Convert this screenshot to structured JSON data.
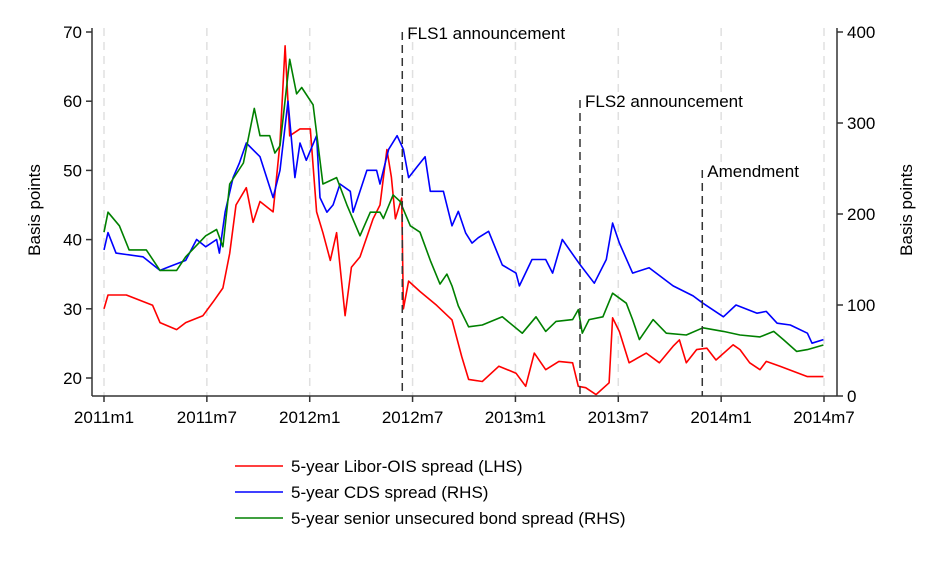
{
  "chart_data": {
    "type": "line",
    "title": "",
    "xlabel": "",
    "ylabel_left": "Basis points",
    "ylabel_right": "Basis points",
    "x_ticks": [
      "2011m1",
      "2011m7",
      "2012m1",
      "2012m7",
      "2013m1",
      "2013m7",
      "2014m1",
      "2014m7"
    ],
    "ylim_left": [
      17.5,
      70
    ],
    "yticks_left": [
      20,
      30,
      40,
      50,
      60,
      70
    ],
    "ylim_right": [
      0,
      400
    ],
    "yticks_right": [
      0,
      100,
      200,
      300,
      400
    ],
    "grid": "vertical dashed at x ticks",
    "legend_position": "bottom",
    "events": [
      {
        "label": "FLS1 announcement",
        "date": "2012-06-13"
      },
      {
        "label": "FLS2 announcement",
        "date": "2013-04-24"
      },
      {
        "label": "Amendment",
        "date": "2013-11-28"
      }
    ],
    "series": [
      {
        "name": "5-year Libor-OIS spread (LHS)",
        "axis": "left",
        "color": "#ff0000",
        "points": [
          [
            "2011-01-01",
            30
          ],
          [
            "2011-01-08",
            32
          ],
          [
            "2011-02-10",
            32
          ],
          [
            "2011-03-26",
            30.5
          ],
          [
            "2011-04-09",
            28
          ],
          [
            "2011-05-08",
            27
          ],
          [
            "2011-05-24",
            28
          ],
          [
            "2011-06-24",
            29
          ],
          [
            "2011-07-12",
            31
          ],
          [
            "2011-07-29",
            33
          ],
          [
            "2011-08-11",
            38
          ],
          [
            "2011-08-22",
            45
          ],
          [
            "2011-09-10",
            47.5
          ],
          [
            "2011-09-22",
            42.5
          ],
          [
            "2011-10-04",
            45.5
          ],
          [
            "2011-10-27",
            44
          ],
          [
            "2011-11-09",
            54
          ],
          [
            "2011-11-18",
            68
          ],
          [
            "2011-11-26",
            55
          ],
          [
            "2011-12-14",
            56
          ],
          [
            "2012-01-02",
            56
          ],
          [
            "2012-01-13",
            44
          ],
          [
            "2012-01-24",
            41
          ],
          [
            "2012-02-07",
            37
          ],
          [
            "2012-02-18",
            41
          ],
          [
            "2012-03-03",
            29
          ],
          [
            "2012-03-14",
            36
          ],
          [
            "2012-03-29",
            37.5
          ],
          [
            "2012-04-22",
            43
          ],
          [
            "2012-05-04",
            45
          ],
          [
            "2012-05-16",
            53
          ],
          [
            "2012-05-24",
            49
          ],
          [
            "2012-06-01",
            43
          ],
          [
            "2012-06-12",
            46
          ],
          [
            "2012-06-15",
            30
          ],
          [
            "2012-06-24",
            34
          ],
          [
            "2012-07-14",
            32.5
          ],
          [
            "2012-08-13",
            30.5
          ],
          [
            "2012-09-10",
            28.4
          ],
          [
            "2012-09-27",
            23.1
          ],
          [
            "2012-10-09",
            19.8
          ],
          [
            "2012-11-03",
            19.5
          ],
          [
            "2012-12-02",
            21.7
          ],
          [
            "2013-01-02",
            20.7
          ],
          [
            "2013-01-19",
            18.8
          ],
          [
            "2013-02-04",
            23.6
          ],
          [
            "2013-02-24",
            21.2
          ],
          [
            "2013-03-17",
            22.4
          ],
          [
            "2013-04-11",
            22.2
          ],
          [
            "2013-04-21",
            18.8
          ],
          [
            "2013-05-04",
            18.6
          ],
          [
            "2013-05-22",
            17.6
          ],
          [
            "2013-06-15",
            19.3
          ],
          [
            "2013-06-21",
            28.7
          ],
          [
            "2013-07-03",
            26.7
          ],
          [
            "2013-07-20",
            22.2
          ],
          [
            "2013-08-20",
            23.6
          ],
          [
            "2013-09-13",
            22.2
          ],
          [
            "2013-10-07",
            24.6
          ],
          [
            "2013-10-18",
            25.5
          ],
          [
            "2013-10-30",
            22.2
          ],
          [
            "2013-11-18",
            24.1
          ],
          [
            "2013-12-06",
            24.3
          ],
          [
            "2013-12-22",
            22.6
          ],
          [
            "2014-01-22",
            24.8
          ],
          [
            "2014-02-04",
            24.1
          ],
          [
            "2014-02-21",
            22.2
          ],
          [
            "2014-03-09",
            21.2
          ],
          [
            "2014-03-20",
            22.4
          ],
          [
            "2014-04-14",
            21.7
          ],
          [
            "2014-06-02",
            20.2
          ],
          [
            "2014-06-30",
            20.2
          ]
        ]
      },
      {
        "name": "5-year CDS spread (RHS)",
        "axis": "right",
        "color": "#0000ff",
        "points": [
          [
            "2011-01-01",
            160.6
          ],
          [
            "2011-01-08",
            179.6
          ],
          [
            "2011-01-22",
            157
          ],
          [
            "2011-03-09",
            153
          ],
          [
            "2011-04-09",
            138
          ],
          [
            "2011-04-25",
            142
          ],
          [
            "2011-05-24",
            149
          ],
          [
            "2011-06-13",
            172
          ],
          [
            "2011-06-29",
            164
          ],
          [
            "2011-07-18",
            172
          ],
          [
            "2011-07-23",
            157
          ],
          [
            "2011-08-03",
            202
          ],
          [
            "2011-08-17",
            240
          ],
          [
            "2011-08-28",
            256
          ],
          [
            "2011-09-10",
            278
          ],
          [
            "2011-10-04",
            263
          ],
          [
            "2011-10-27",
            218
          ],
          [
            "2011-11-09",
            248
          ],
          [
            "2011-11-23",
            324
          ],
          [
            "2011-12-05",
            240
          ],
          [
            "2011-12-14",
            278
          ],
          [
            "2011-12-25",
            259
          ],
          [
            "2012-01-13",
            286
          ],
          [
            "2012-01-19",
            218
          ],
          [
            "2012-02-01",
            202
          ],
          [
            "2012-02-12",
            210
          ],
          [
            "2012-02-24",
            233
          ],
          [
            "2012-03-12",
            225
          ],
          [
            "2012-03-17",
            202
          ],
          [
            "2012-04-11",
            248
          ],
          [
            "2012-04-28",
            248
          ],
          [
            "2012-05-04",
            233
          ],
          [
            "2012-05-19",
            271
          ],
          [
            "2012-06-04",
            286
          ],
          [
            "2012-06-15",
            271
          ],
          [
            "2012-06-24",
            240
          ],
          [
            "2012-07-09",
            252
          ],
          [
            "2012-07-23",
            263
          ],
          [
            "2012-08-02",
            225
          ],
          [
            "2012-08-25",
            225
          ],
          [
            "2012-09-10",
            187
          ],
          [
            "2012-09-21",
            203
          ],
          [
            "2012-10-04",
            179
          ],
          [
            "2012-10-15",
            168
          ],
          [
            "2012-10-26",
            174
          ],
          [
            "2012-11-14",
            181
          ],
          [
            "2012-12-08",
            144
          ],
          [
            "2013-01-02",
            135
          ],
          [
            "2013-01-08",
            121
          ],
          [
            "2013-01-30",
            150
          ],
          [
            "2013-02-24",
            150
          ],
          [
            "2013-03-06",
            135
          ],
          [
            "2013-03-23",
            172
          ],
          [
            "2013-04-22",
            146
          ],
          [
            "2013-05-19",
            124
          ],
          [
            "2013-06-10",
            150
          ],
          [
            "2013-06-21",
            190
          ],
          [
            "2013-07-03",
            168
          ],
          [
            "2013-07-26",
            135
          ],
          [
            "2013-08-25",
            141
          ],
          [
            "2013-10-07",
            121
          ],
          [
            "2013-11-12",
            110
          ],
          [
            "2013-11-29",
            102
          ],
          [
            "2014-01-05",
            87
          ],
          [
            "2014-01-27",
            100
          ],
          [
            "2014-03-04",
            91
          ],
          [
            "2014-03-20",
            93
          ],
          [
            "2014-04-09",
            80
          ],
          [
            "2014-05-02",
            78
          ],
          [
            "2014-06-02",
            69
          ],
          [
            "2014-06-10",
            58
          ],
          [
            "2014-06-30",
            62
          ]
        ]
      },
      {
        "name": "5-year senior unsecured bond spread (RHS)",
        "axis": "right",
        "color": "#008000",
        "points": [
          [
            "2011-01-01",
            180
          ],
          [
            "2011-01-08",
            202
          ],
          [
            "2011-01-28",
            187
          ],
          [
            "2011-02-15",
            160.6
          ],
          [
            "2011-03-15",
            160.6
          ],
          [
            "2011-04-09",
            138
          ],
          [
            "2011-05-08",
            138
          ],
          [
            "2011-05-24",
            153
          ],
          [
            "2011-06-29",
            176
          ],
          [
            "2011-07-18",
            183
          ],
          [
            "2011-07-29",
            164
          ],
          [
            "2011-08-11",
            233
          ],
          [
            "2011-09-05",
            256
          ],
          [
            "2011-09-24",
            316
          ],
          [
            "2011-10-04",
            286
          ],
          [
            "2011-10-21",
            286
          ],
          [
            "2011-10-30",
            267
          ],
          [
            "2011-11-09",
            275
          ],
          [
            "2011-11-26",
            370
          ],
          [
            "2011-12-08",
            332
          ],
          [
            "2011-12-17",
            339
          ],
          [
            "2012-01-07",
            320
          ],
          [
            "2012-01-24",
            233
          ],
          [
            "2012-02-18",
            240
          ],
          [
            "2012-03-06",
            210
          ],
          [
            "2012-03-29",
            176
          ],
          [
            "2012-04-17",
            202
          ],
          [
            "2012-05-04",
            202
          ],
          [
            "2012-05-10",
            195
          ],
          [
            "2012-05-27",
            221
          ],
          [
            "2012-06-09",
            214
          ],
          [
            "2012-06-27",
            187
          ],
          [
            "2012-07-14",
            180
          ],
          [
            "2012-08-02",
            149
          ],
          [
            "2012-08-19",
            123
          ],
          [
            "2012-09-01",
            134
          ],
          [
            "2012-09-10",
            121
          ],
          [
            "2012-09-21",
            99
          ],
          [
            "2012-10-09",
            76
          ],
          [
            "2012-11-03",
            78
          ],
          [
            "2012-12-08",
            87
          ],
          [
            "2013-01-13",
            69
          ],
          [
            "2013-02-07",
            87
          ],
          [
            "2013-02-24",
            71
          ],
          [
            "2013-03-12",
            82
          ],
          [
            "2013-04-11",
            84
          ],
          [
            "2013-04-21",
            95
          ],
          [
            "2013-04-28",
            69
          ],
          [
            "2013-05-10",
            84
          ],
          [
            "2013-06-04",
            87
          ],
          [
            "2013-06-21",
            113
          ],
          [
            "2013-07-15",
            102
          ],
          [
            "2013-07-26",
            84
          ],
          [
            "2013-08-08",
            62
          ],
          [
            "2013-09-02",
            84
          ],
          [
            "2013-09-25",
            69
          ],
          [
            "2013-10-30",
            67
          ],
          [
            "2013-11-29",
            75
          ],
          [
            "2014-01-05",
            71
          ],
          [
            "2014-02-04",
            67
          ],
          [
            "2014-03-09",
            65
          ],
          [
            "2014-04-03",
            71
          ],
          [
            "2014-04-20",
            62
          ],
          [
            "2014-05-13",
            49
          ],
          [
            "2014-06-02",
            51
          ],
          [
            "2014-06-30",
            56
          ]
        ]
      }
    ]
  }
}
